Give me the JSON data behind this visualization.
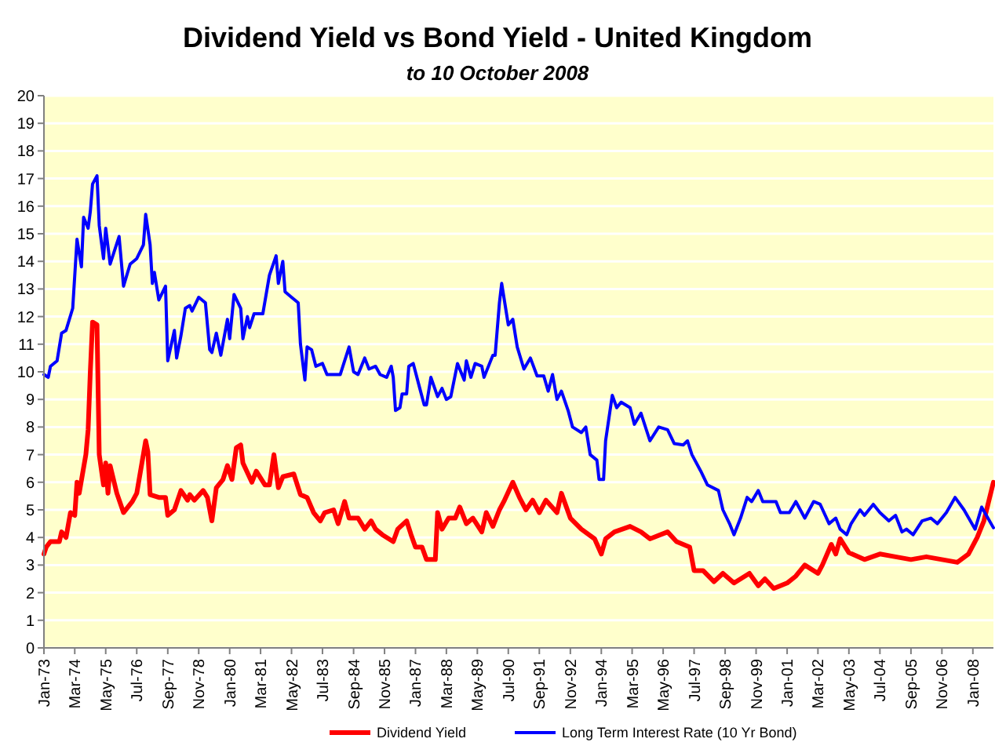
{
  "chart_data": {
    "type": "line",
    "title": "Dividend Yield vs Bond Yield - United Kingdom",
    "subtitle": "to 10 October 2008",
    "series": [
      {
        "name": "Dividend Yield",
        "color": "#ff0000",
        "x": [
          "1973-01",
          "1973-02",
          "1973-04",
          "1973-08",
          "1973-09",
          "1973-11",
          "1974-01",
          "1974-03",
          "1974-04",
          "1974-05",
          "1974-08",
          "1974-09",
          "1974-10",
          "1974-11",
          "1975-01",
          "1975-02",
          "1975-04",
          "1975-05",
          "1975-06",
          "1975-07",
          "1975-10",
          "1976-01",
          "1976-05",
          "1976-07",
          "1976-11",
          "1976-12",
          "1977-01",
          "1977-05",
          "1977-08",
          "1977-09",
          "1977-12",
          "1978-03",
          "1978-06",
          "1978-07",
          "1978-09",
          "1979-01",
          "1979-03",
          "1979-05",
          "1979-07",
          "1979-10",
          "1979-12",
          "1980-02",
          "1980-04",
          "1980-06",
          "1980-07",
          "1980-11",
          "1981-01",
          "1981-05",
          "1981-07",
          "1981-09",
          "1981-11",
          "1982-01",
          "1982-06",
          "1982-09",
          "1982-12",
          "1983-03",
          "1983-06",
          "1983-08",
          "1983-12",
          "1984-02",
          "1984-05",
          "1984-07",
          "1984-11",
          "1985-02",
          "1985-05",
          "1985-07",
          "1985-10",
          "1986-03",
          "1986-05",
          "1986-09",
          "1986-11",
          "1987-01",
          "1987-04",
          "1987-06",
          "1987-10",
          "1987-11",
          "1988-01",
          "1988-04",
          "1988-07",
          "1988-09",
          "1988-12",
          "1989-03",
          "1989-07",
          "1989-09",
          "1989-12",
          "1990-03",
          "1990-05",
          "1990-09",
          "1990-12",
          "1991-03",
          "1991-06",
          "1991-09",
          "1991-12",
          "1992-05",
          "1992-07",
          "1992-11",
          "1993-04",
          "1993-10",
          "1994-01",
          "1994-03",
          "1994-07",
          "1995-02",
          "1995-07",
          "1995-11",
          "1996-07",
          "1996-11",
          "1997-05",
          "1997-07",
          "1997-11",
          "1998-04",
          "1998-08",
          "1999-01",
          "1999-08",
          "1999-12",
          "2000-03",
          "2000-07",
          "2001-01",
          "2001-05",
          "2001-09",
          "2002-03",
          "2002-05",
          "2002-09",
          "2002-11",
          "2003-01",
          "2003-05",
          "2003-12",
          "2004-07",
          "2005-02",
          "2005-09",
          "2006-04",
          "2006-11",
          "2007-06",
          "2007-11",
          "2008-03",
          "2008-06",
          "2008-10-10"
        ],
        "values": [
          3.4,
          3.65,
          3.85,
          3.85,
          4.2,
          4.0,
          4.9,
          4.8,
          6.0,
          5.6,
          7.0,
          7.9,
          10.0,
          11.8,
          11.7,
          7.0,
          5.9,
          6.7,
          5.6,
          6.6,
          5.6,
          4.9,
          5.3,
          5.6,
          7.5,
          7.1,
          5.55,
          5.45,
          5.45,
          4.8,
          5.0,
          5.7,
          5.35,
          5.55,
          5.35,
          5.7,
          5.45,
          4.6,
          5.8,
          6.1,
          6.6,
          6.1,
          7.25,
          7.35,
          6.7,
          6.0,
          6.4,
          5.9,
          5.9,
          7.0,
          5.8,
          6.2,
          6.3,
          5.55,
          5.45,
          4.9,
          4.6,
          4.9,
          5.0,
          4.5,
          5.3,
          4.7,
          4.7,
          4.3,
          4.6,
          4.3,
          4.1,
          3.85,
          4.3,
          4.6,
          4.1,
          3.65,
          3.65,
          3.2,
          3.2,
          4.9,
          4.3,
          4.7,
          4.7,
          5.1,
          4.5,
          4.7,
          4.2,
          4.9,
          4.4,
          5.0,
          5.3,
          6.0,
          5.45,
          5.0,
          5.35,
          4.9,
          5.35,
          4.9,
          5.6,
          4.7,
          4.3,
          3.95,
          3.4,
          3.95,
          4.2,
          4.4,
          4.2,
          3.95,
          4.2,
          3.85,
          3.65,
          2.8,
          2.8,
          2.4,
          2.7,
          2.35,
          2.7,
          2.25,
          2.5,
          2.15,
          2.35,
          2.6,
          3.0,
          2.7,
          3.0,
          3.75,
          3.4,
          3.95,
          3.45,
          3.2,
          3.4,
          3.3,
          3.2,
          3.3,
          3.2,
          3.1,
          3.4,
          4.0,
          4.6,
          6.0
        ]
      },
      {
        "name": "Long Term Interest Rate (10 Yr Bond)",
        "color": "#0000ff",
        "x": [
          "1973-01",
          "1973-03",
          "1973-04",
          "1973-07",
          "1973-09",
          "1973-11",
          "1974-02",
          "1974-04",
          "1974-06",
          "1974-07",
          "1974-09",
          "1974-10",
          "1974-11",
          "1975-01",
          "1975-02",
          "1975-04",
          "1975-05",
          "1975-07",
          "1975-11",
          "1976-01",
          "1976-04",
          "1976-07",
          "1976-10",
          "1976-11",
          "1977-01",
          "1977-02",
          "1977-03",
          "1977-05",
          "1977-08",
          "1977-09",
          "1977-12",
          "1978-01",
          "1978-03",
          "1978-05",
          "1978-07",
          "1978-08",
          "1978-11",
          "1979-02",
          "1979-04",
          "1979-05",
          "1979-07",
          "1979-09",
          "1979-12",
          "1980-01",
          "1980-03",
          "1980-06",
          "1980-07",
          "1980-09",
          "1980-10",
          "1980-12",
          "1981-04",
          "1981-07",
          "1981-10",
          "1981-11",
          "1982-01",
          "1982-02",
          "1982-05",
          "1982-08",
          "1982-09",
          "1982-11",
          "1982-12",
          "1983-02",
          "1983-04",
          "1983-07",
          "1983-09",
          "1983-12",
          "1984-03",
          "1984-07",
          "1984-09",
          "1984-11",
          "1985-02",
          "1985-04",
          "1985-07",
          "1985-09",
          "1985-12",
          "1986-02",
          "1986-03",
          "1986-04",
          "1986-06",
          "1986-07",
          "1986-09",
          "1986-10",
          "1986-12",
          "1987-03",
          "1987-05",
          "1987-06",
          "1987-08",
          "1987-11",
          "1988-01",
          "1988-03",
          "1988-05",
          "1988-08",
          "1988-11",
          "1988-12",
          "1989-02",
          "1989-04",
          "1989-07",
          "1989-08",
          "1989-12",
          "1990-01",
          "1990-03",
          "1990-04",
          "1990-07",
          "1990-09",
          "1990-11",
          "1991-02",
          "1991-05",
          "1991-08",
          "1991-11",
          "1992-01",
          "1992-03",
          "1992-05",
          "1992-07",
          "1992-10",
          "1992-12",
          "1993-04",
          "1993-06",
          "1993-08",
          "1993-11",
          "1993-12",
          "1994-02",
          "1994-03",
          "1994-06",
          "1994-08",
          "1994-10",
          "1995-02",
          "1995-04",
          "1995-07",
          "1995-11",
          "1996-03",
          "1996-07",
          "1996-10",
          "1997-02",
          "1997-04",
          "1997-06",
          "1997-10",
          "1998-01",
          "1998-06",
          "1998-08",
          "1998-11",
          "1999-01",
          "1999-04",
          "1999-07",
          "1999-09",
          "1999-12",
          "2000-02",
          "2000-08",
          "2000-10",
          "2001-02",
          "2001-05",
          "2001-09",
          "2002-01",
          "2002-04",
          "2002-08",
          "2002-11",
          "2003-01",
          "2003-04",
          "2003-06",
          "2003-10",
          "2003-12",
          "2004-04",
          "2004-07",
          "2004-11",
          "2005-02",
          "2005-05",
          "2005-07",
          "2005-10",
          "2006-02",
          "2006-06",
          "2006-09",
          "2007-01",
          "2007-05",
          "2007-09",
          "2008-02",
          "2008-05",
          "2008-10-10"
        ],
        "values": [
          9.9,
          9.8,
          10.2,
          10.4,
          11.4,
          11.5,
          12.3,
          14.8,
          13.8,
          15.6,
          15.2,
          15.8,
          16.8,
          17.1,
          15.3,
          14.1,
          15.2,
          13.9,
          14.9,
          13.1,
          13.9,
          14.1,
          14.6,
          15.7,
          14.6,
          13.2,
          13.6,
          12.6,
          13.1,
          10.4,
          11.5,
          10.5,
          11.3,
          12.3,
          12.4,
          12.2,
          12.7,
          12.5,
          10.8,
          10.7,
          11.4,
          10.6,
          11.9,
          11.2,
          12.8,
          12.3,
          11.2,
          12.0,
          11.6,
          12.1,
          12.1,
          13.5,
          14.2,
          13.2,
          14.0,
          12.9,
          12.7,
          12.5,
          11.0,
          9.7,
          10.9,
          10.8,
          10.2,
          10.3,
          9.9,
          9.9,
          9.9,
          10.9,
          10.0,
          9.9,
          10.5,
          10.1,
          10.2,
          9.9,
          9.8,
          10.2,
          9.8,
          8.6,
          8.7,
          9.2,
          9.2,
          10.2,
          10.3,
          9.4,
          8.8,
          8.8,
          9.8,
          9.1,
          9.4,
          9.0,
          9.1,
          10.3,
          9.7,
          10.4,
          9.8,
          10.3,
          10.2,
          9.8,
          10.6,
          10.6,
          12.5,
          13.2,
          11.7,
          11.9,
          10.9,
          10.1,
          10.5,
          9.85,
          9.85,
          9.3,
          9.9,
          9.0,
          9.3,
          8.6,
          8.0,
          7.8,
          8.0,
          7.0,
          6.8,
          6.1,
          6.1,
          7.5,
          9.15,
          8.7,
          8.9,
          8.7,
          8.1,
          8.5,
          7.5,
          8.0,
          7.9,
          7.4,
          7.35,
          7.5,
          7.0,
          6.4,
          5.9,
          5.7,
          5.0,
          4.5,
          4.1,
          4.7,
          5.45,
          5.3,
          5.7,
          5.3,
          5.3,
          4.9,
          4.9,
          5.3,
          4.7,
          5.3,
          5.2,
          4.5,
          4.7,
          4.3,
          4.1,
          4.5,
          5.0,
          4.8,
          5.2,
          4.9,
          4.6,
          4.8,
          4.2,
          4.3,
          4.1,
          4.6,
          4.7,
          4.5,
          4.9,
          5.45,
          5.0,
          4.3,
          5.1,
          4.35
        ]
      }
    ],
    "xlim": [
      "1973-01",
      "2008-10-10"
    ],
    "xticks": [
      {
        "value": "1973-01",
        "label": "Jan-73"
      },
      {
        "value": "1974-03",
        "label": "Mar-74"
      },
      {
        "value": "1975-05",
        "label": "May-75"
      },
      {
        "value": "1976-07",
        "label": "Jul-76"
      },
      {
        "value": "1977-09",
        "label": "Sep-77"
      },
      {
        "value": "1978-11",
        "label": "Nov-78"
      },
      {
        "value": "1980-01",
        "label": "Jan-80"
      },
      {
        "value": "1981-03",
        "label": "Mar-81"
      },
      {
        "value": "1982-05",
        "label": "May-82"
      },
      {
        "value": "1983-07",
        "label": "Jul-83"
      },
      {
        "value": "1984-09",
        "label": "Sep-84"
      },
      {
        "value": "1985-11",
        "label": "Nov-85"
      },
      {
        "value": "1987-01",
        "label": "Jan-87"
      },
      {
        "value": "1988-03",
        "label": "Mar-88"
      },
      {
        "value": "1989-05",
        "label": "May-89"
      },
      {
        "value": "1990-07",
        "label": "Jul-90"
      },
      {
        "value": "1991-09",
        "label": "Sep-91"
      },
      {
        "value": "1992-11",
        "label": "Nov-92"
      },
      {
        "value": "1994-01",
        "label": "Jan-94"
      },
      {
        "value": "1995-03",
        "label": "Mar-95"
      },
      {
        "value": "1996-05",
        "label": "May-96"
      },
      {
        "value": "1997-07",
        "label": "Jul-97"
      },
      {
        "value": "1998-09",
        "label": "Sep-98"
      },
      {
        "value": "1999-11",
        "label": "Nov-99"
      },
      {
        "value": "2001-01",
        "label": "Jan-01"
      },
      {
        "value": "2002-03",
        "label": "Mar-02"
      },
      {
        "value": "2003-05",
        "label": "May-03"
      },
      {
        "value": "2004-07",
        "label": "Jul-04"
      },
      {
        "value": "2005-09",
        "label": "Sep-05"
      },
      {
        "value": "2006-11",
        "label": "Nov-06"
      },
      {
        "value": "2008-01",
        "label": "Jan-08"
      }
    ],
    "ylim": [
      0,
      20
    ],
    "yticks": [
      0,
      1,
      2,
      3,
      4,
      5,
      6,
      7,
      8,
      9,
      10,
      11,
      12,
      13,
      14,
      15,
      16,
      17,
      18,
      19,
      20
    ],
    "grid": "y",
    "legend": "bottom"
  }
}
